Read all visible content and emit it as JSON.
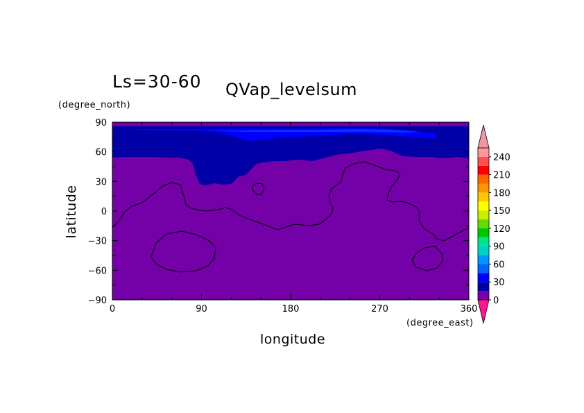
{
  "chart_data": {
    "type": "heatmap",
    "title": "QVap_levelsum",
    "subtitle": "Ls=30-60",
    "xlabel": "longitude",
    "ylabel": "latitude",
    "x_unit": "(degree_east)",
    "y_unit": "(degree_north)",
    "xlim": [
      0,
      360
    ],
    "ylim": [
      -90,
      90
    ],
    "x_ticks": [
      "0",
      "90",
      "180",
      "270",
      "360"
    ],
    "y_ticks": [
      "90",
      "60",
      "30",
      "0",
      "−30",
      "−60",
      "−90"
    ],
    "colorbar": {
      "levels": [
        "0",
        "30",
        "60",
        "90",
        "120",
        "150",
        "180",
        "210",
        "240"
      ],
      "colors": [
        "#7400a8",
        "#0000a6",
        "#0000ff",
        "#0064ff",
        "#0096ff",
        "#00d2c8",
        "#00e68c",
        "#00c800",
        "#64dc00",
        "#c8f000",
        "#ffff00",
        "#ffc800",
        "#ff9600",
        "#ff6400",
        "#ff0000",
        "#ff5050",
        "#ff96a0"
      ],
      "under_color": "#ff1493",
      "over_color": "#f096a0"
    },
    "regions": [
      {
        "level": "0-15",
        "color": "#7400a8"
      },
      {
        "level": "15-30",
        "color": "#0000a6"
      },
      {
        "level": "30-45",
        "color": "#0000ff"
      },
      {
        "level": "45-60",
        "color": "#0064ff"
      }
    ],
    "contour_lines": {
      "color": "#000000",
      "description_level": "0"
    }
  }
}
